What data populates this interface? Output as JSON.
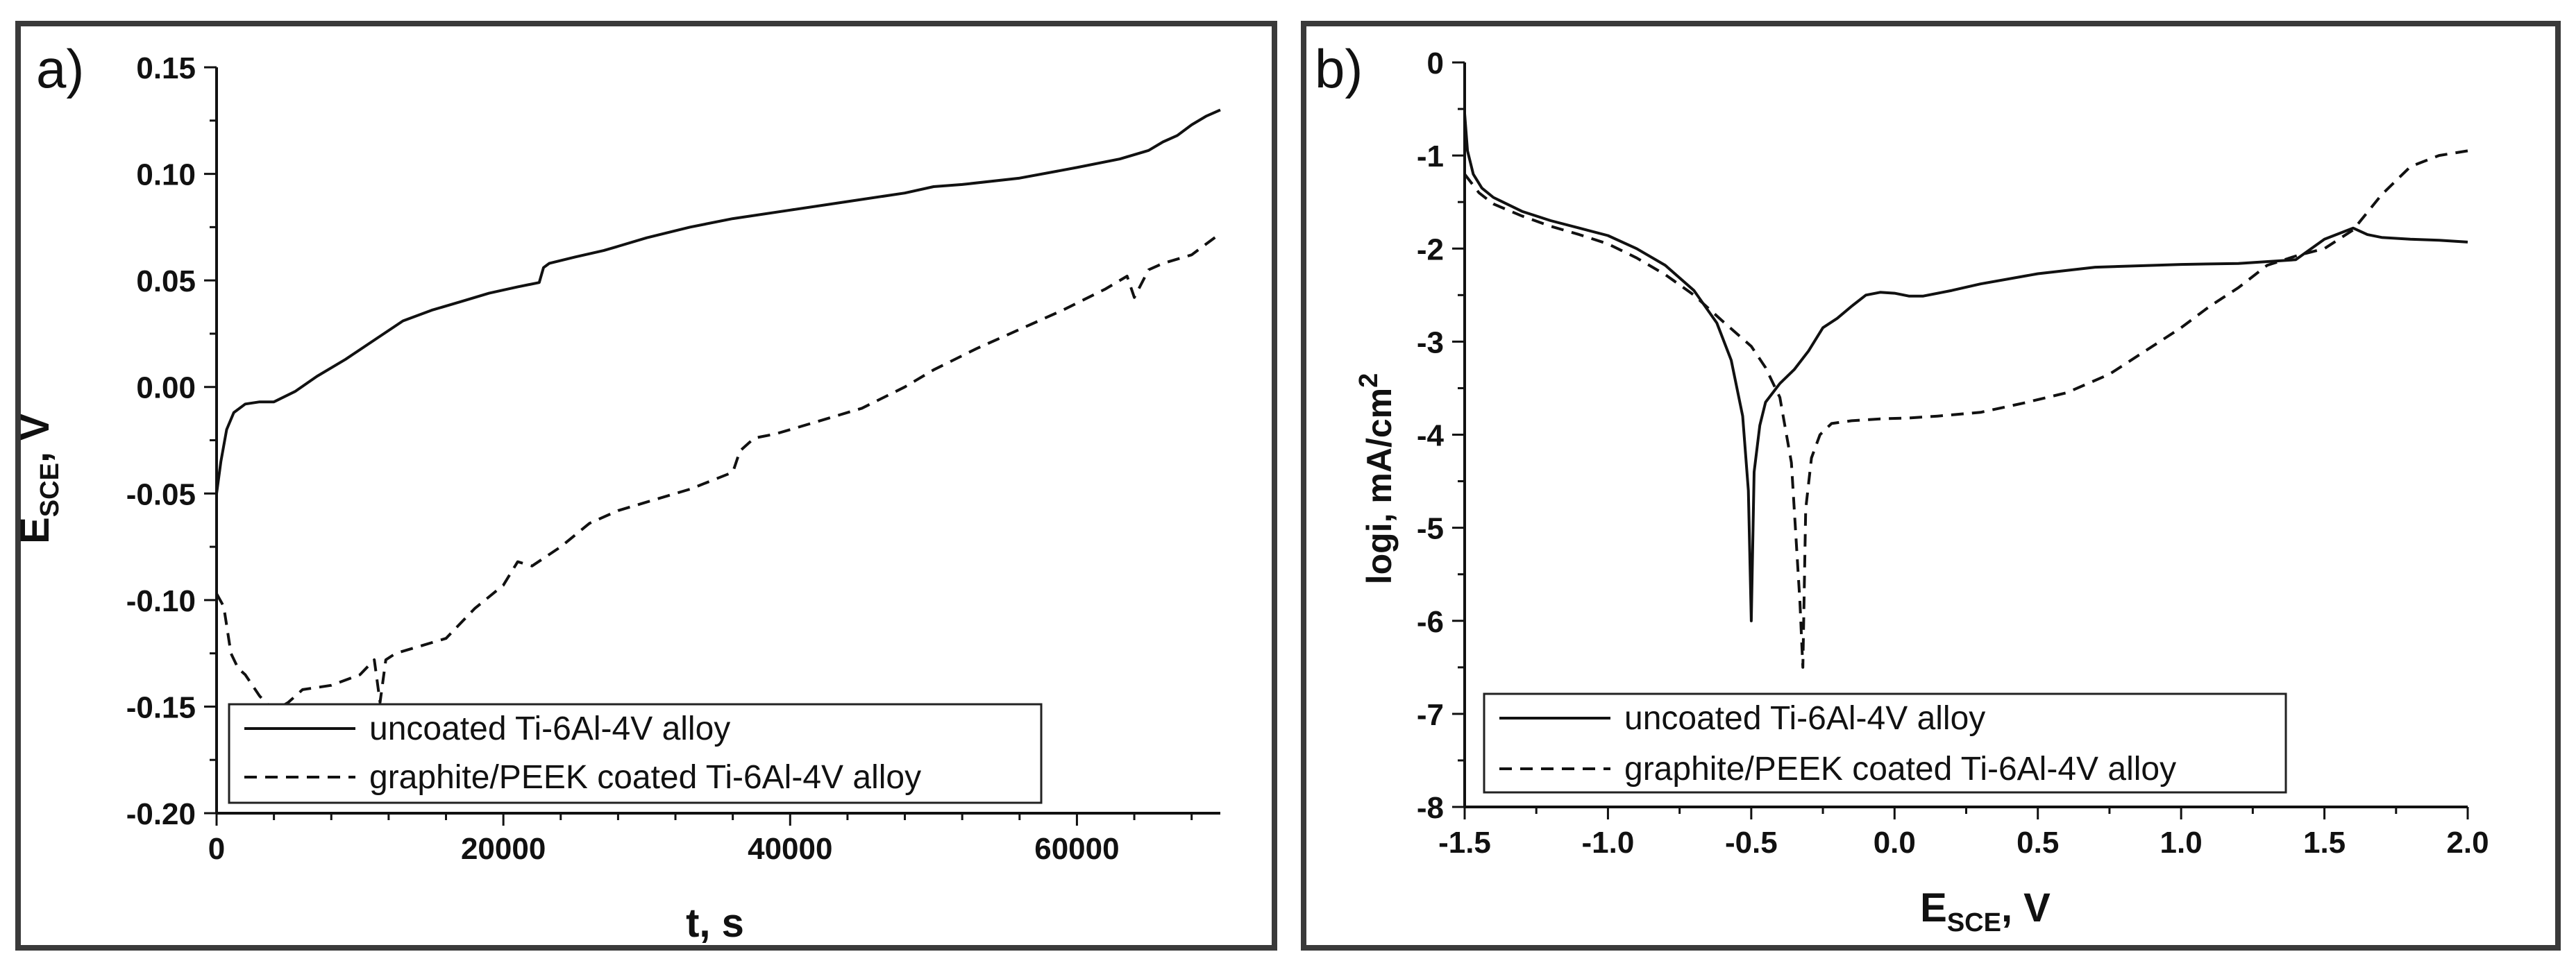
{
  "chart_data": [
    {
      "type": "line",
      "panel_label": "a)",
      "xlabel": "t, s",
      "ylabel": "E",
      "ylabel_sub": "SCE",
      "ylabel_suffix": ", V",
      "xlim": [
        0,
        70000
      ],
      "ylim": [
        -0.2,
        0.15
      ],
      "xticks": [
        0,
        20000,
        40000,
        60000
      ],
      "xtick_labels": [
        "0",
        "20000",
        "40000",
        "60000"
      ],
      "yticks": [
        0.15,
        0.1,
        0.05,
        0.0,
        -0.05,
        -0.1,
        -0.15,
        -0.2
      ],
      "ytick_labels": [
        "0.15",
        "0.10",
        "0.05",
        "0.00",
        "-0.05",
        "-0.10",
        "-0.15",
        "-0.20"
      ],
      "legend": [
        "uncoated Ti-6Al-4V alloy",
        "graphite/PEEK coated Ti-6Al-4V alloy"
      ],
      "legend_position": "bottom-center",
      "series": [
        {
          "name": "uncoated Ti-6Al-4V alloy",
          "style": "solid",
          "x": [
            0,
            300,
            700,
            1200,
            2000,
            3000,
            4000,
            5500,
            7000,
            9000,
            11000,
            13000,
            15000,
            17000,
            19000,
            21000,
            22500,
            22800,
            23200,
            25000,
            27000,
            28000,
            30000,
            33000,
            36000,
            40000,
            44000,
            48000,
            50000,
            52000,
            56000,
            60000,
            63000,
            65000,
            66000,
            67000,
            68000,
            69000,
            70000
          ],
          "y": [
            -0.05,
            -0.035,
            -0.02,
            -0.012,
            -0.008,
            -0.007,
            -0.007,
            -0.002,
            0.005,
            0.013,
            0.022,
            0.031,
            0.036,
            0.04,
            0.044,
            0.047,
            0.049,
            0.056,
            0.058,
            0.061,
            0.064,
            0.066,
            0.07,
            0.075,
            0.079,
            0.083,
            0.087,
            0.091,
            0.094,
            0.095,
            0.098,
            0.103,
            0.107,
            0.111,
            0.115,
            0.118,
            0.123,
            0.127,
            0.13
          ]
        },
        {
          "name": "graphite/PEEK coated Ti-6Al-4V alloy",
          "style": "dashed",
          "x": [
            0,
            500,
            1000,
            1500,
            2000,
            3000,
            4000,
            5000,
            6000,
            8000,
            10000,
            11000,
            11400,
            11800,
            12500,
            14000,
            16000,
            18000,
            20000,
            21000,
            22000,
            24000,
            26000,
            28000,
            30000,
            33000,
            36000,
            36500,
            37500,
            39000,
            42000,
            45000,
            48000,
            50000,
            53000,
            56000,
            59000,
            62000,
            63500,
            64000,
            65000,
            66000,
            67000,
            68000,
            69000,
            70000
          ],
          "y": [
            -0.097,
            -0.103,
            -0.125,
            -0.132,
            -0.135,
            -0.145,
            -0.152,
            -0.148,
            -0.142,
            -0.14,
            -0.135,
            -0.128,
            -0.148,
            -0.128,
            -0.125,
            -0.122,
            -0.118,
            -0.104,
            -0.093,
            -0.082,
            -0.084,
            -0.075,
            -0.064,
            -0.058,
            -0.054,
            -0.048,
            -0.04,
            -0.03,
            -0.024,
            -0.022,
            -0.016,
            -0.01,
            0.0,
            0.008,
            0.018,
            0.027,
            0.036,
            0.046,
            0.052,
            0.042,
            0.055,
            0.058,
            0.06,
            0.062,
            0.067,
            0.072
          ]
        }
      ]
    },
    {
      "type": "line",
      "panel_label": "b)",
      "xlabel": "E",
      "xlabel_sub": "SCE",
      "xlabel_suffix": ", V",
      "ylabel": "logi, mA/cm",
      "ylabel_sup": "2",
      "xlim": [
        -1.5,
        2.0
      ],
      "ylim": [
        -8,
        0
      ],
      "xticks": [
        -1.5,
        -1.0,
        -0.5,
        0.0,
        0.5,
        1.0,
        1.5,
        2.0
      ],
      "xtick_labels": [
        "-1.5",
        "-1.0",
        "-0.5",
        "0.0",
        "0.5",
        "1.0",
        "1.5",
        "2.0"
      ],
      "yticks": [
        0,
        -1,
        -2,
        -3,
        -4,
        -5,
        -6,
        -7,
        -8
      ],
      "ytick_labels": [
        "0",
        "-1",
        "-2",
        "-3",
        "-4",
        "-5",
        "-6",
        "-7",
        "-8"
      ],
      "legend": [
        "uncoated Ti-6Al-4V alloy",
        "graphite/PEEK coated Ti-6Al-4V alloy"
      ],
      "legend_position": "bottom-left",
      "series": [
        {
          "name": "uncoated Ti-6Al-4V alloy",
          "style": "solid",
          "x": [
            -1.5,
            -1.49,
            -1.47,
            -1.44,
            -1.4,
            -1.3,
            -1.2,
            -1.1,
            -1.0,
            -0.9,
            -0.8,
            -0.7,
            -0.62,
            -0.57,
            -0.53,
            -0.51,
            -0.5,
            -0.49,
            -0.47,
            -0.45,
            -0.4,
            -0.35,
            -0.3,
            -0.25,
            -0.2,
            -0.15,
            -0.1,
            -0.05,
            0.0,
            0.05,
            0.1,
            0.2,
            0.3,
            0.5,
            0.7,
            1.0,
            1.2,
            1.4,
            1.5,
            1.6,
            1.65,
            1.7,
            1.8,
            1.9,
            2.0
          ],
          "y": [
            -0.55,
            -0.95,
            -1.2,
            -1.35,
            -1.45,
            -1.6,
            -1.7,
            -1.78,
            -1.86,
            -2.0,
            -2.18,
            -2.45,
            -2.8,
            -3.2,
            -3.8,
            -4.6,
            -6.0,
            -4.4,
            -3.9,
            -3.65,
            -3.45,
            -3.3,
            -3.1,
            -2.85,
            -2.75,
            -2.62,
            -2.5,
            -2.47,
            -2.48,
            -2.51,
            -2.51,
            -2.45,
            -2.38,
            -2.27,
            -2.2,
            -2.17,
            -2.16,
            -2.12,
            -1.9,
            -1.78,
            -1.85,
            -1.88,
            -1.9,
            -1.91,
            -1.93
          ]
        },
        {
          "name": "graphite/PEEK coated Ti-6Al-4V alloy",
          "style": "dashed",
          "x": [
            -1.5,
            -1.45,
            -1.4,
            -1.3,
            -1.2,
            -1.1,
            -1.0,
            -0.9,
            -0.8,
            -0.7,
            -0.6,
            -0.5,
            -0.45,
            -0.4,
            -0.36,
            -0.33,
            -0.32,
            -0.31,
            -0.29,
            -0.26,
            -0.22,
            -0.15,
            -0.05,
            0.05,
            0.15,
            0.3,
            0.45,
            0.6,
            0.75,
            0.9,
            1.0,
            1.1,
            1.2,
            1.3,
            1.4,
            1.5,
            1.6,
            1.7,
            1.8,
            1.9,
            2.0
          ],
          "y": [
            -1.2,
            -1.4,
            -1.52,
            -1.65,
            -1.76,
            -1.85,
            -1.95,
            -2.1,
            -2.28,
            -2.5,
            -2.78,
            -3.05,
            -3.28,
            -3.6,
            -4.3,
            -5.8,
            -6.5,
            -4.8,
            -4.25,
            -4.0,
            -3.88,
            -3.85,
            -3.83,
            -3.82,
            -3.8,
            -3.76,
            -3.66,
            -3.55,
            -3.35,
            -3.05,
            -2.85,
            -2.62,
            -2.42,
            -2.18,
            -2.08,
            -2.0,
            -1.8,
            -1.42,
            -1.12,
            -1.0,
            -0.95
          ]
        }
      ]
    }
  ]
}
